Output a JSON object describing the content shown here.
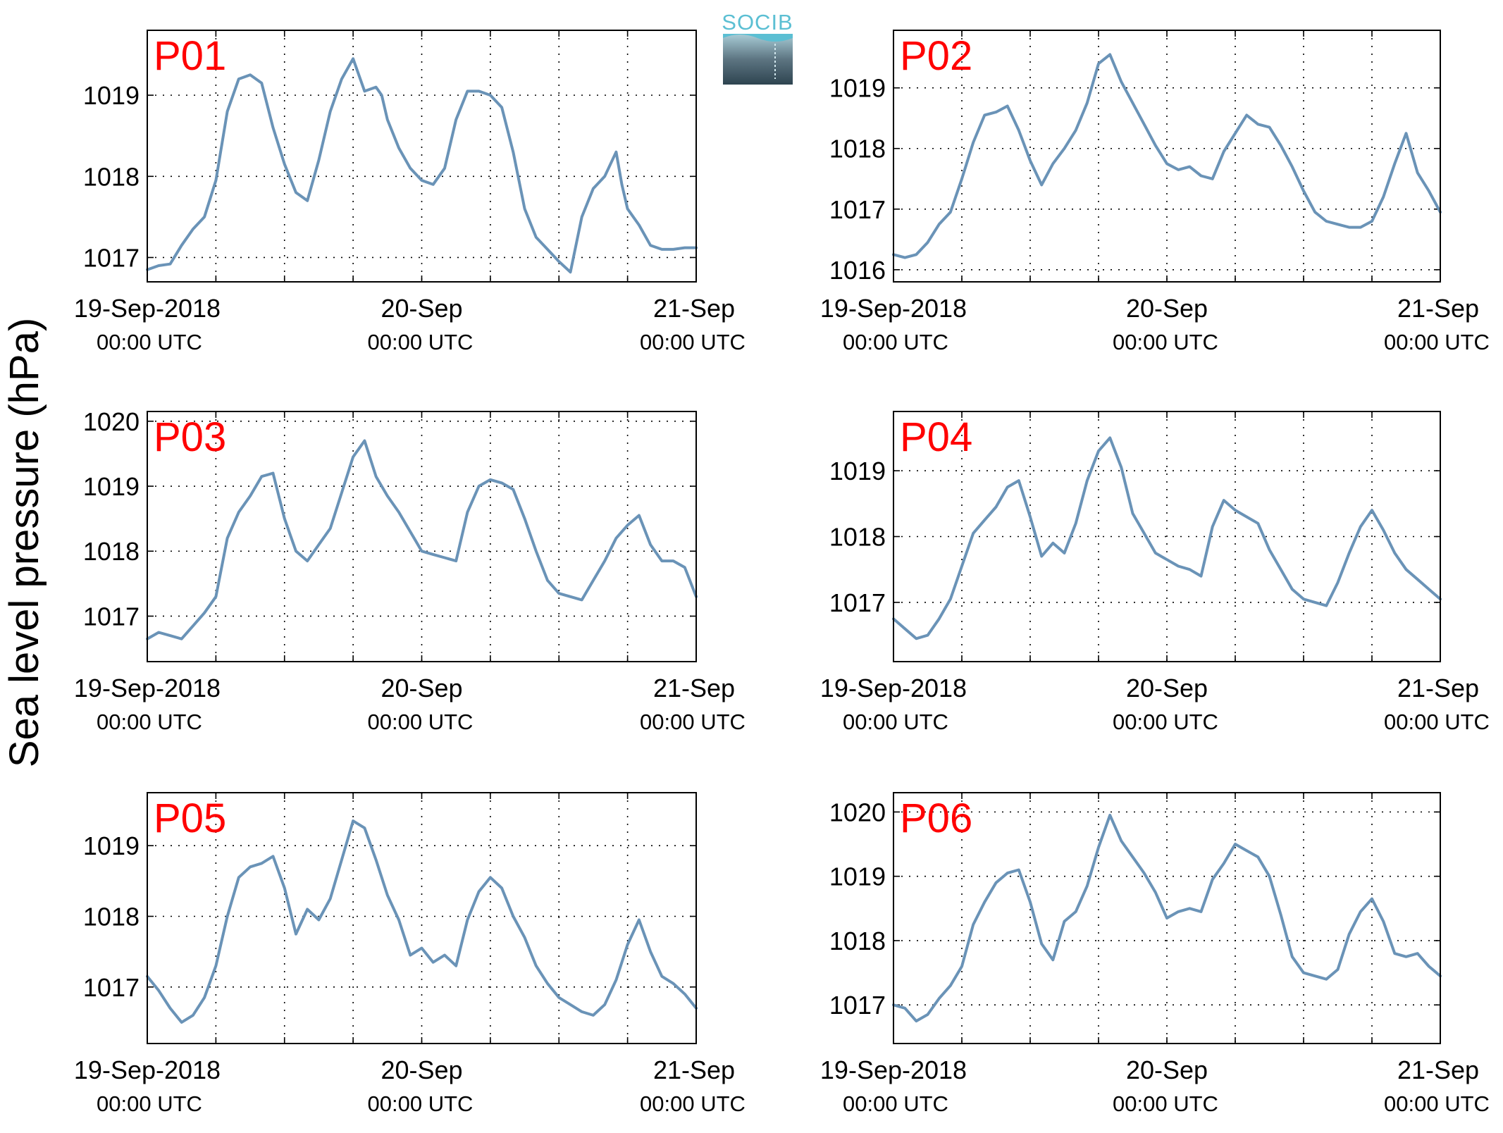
{
  "figure": {
    "ylabel": "Sea level pressure (hPa)",
    "logo_text": "SOCIB",
    "line_color": "#6a93b7",
    "tag_color": "#ff0000",
    "logo_color": "#5bbfd3"
  },
  "chart_data": [
    {
      "type": "line",
      "name": "P01",
      "x_tick_labels": [
        "19-Sep-2018",
        "20-Sep",
        "21-Sep"
      ],
      "x_tick_sublabels": [
        "00:00 UTC",
        "00:00 UTC",
        "00:00 UTC"
      ],
      "x_unit": "hours since 19-Sep-2018 00:00 UTC",
      "xlim": [
        0,
        48
      ],
      "ylim": [
        1016.7,
        1019.8
      ],
      "yticks": [
        1017,
        1018,
        1019
      ],
      "grid": true,
      "x": [
        0,
        1,
        2,
        3,
        4,
        5,
        6,
        7,
        8,
        9,
        10,
        11,
        12,
        13,
        14,
        15,
        16,
        17,
        18,
        19,
        20,
        20.5,
        21,
        22,
        23,
        24,
        25,
        26,
        27,
        28,
        29,
        30,
        31,
        32,
        33,
        34,
        35,
        36,
        37,
        38,
        39,
        40,
        41,
        41.5,
        42,
        43,
        44,
        45,
        46,
        47,
        48
      ],
      "y": [
        1016.85,
        1016.9,
        1016.92,
        1017.15,
        1017.35,
        1017.5,
        1017.95,
        1018.8,
        1019.2,
        1019.25,
        1019.15,
        1018.6,
        1018.15,
        1017.8,
        1017.7,
        1018.2,
        1018.8,
        1019.2,
        1019.45,
        1019.05,
        1019.1,
        1019.0,
        1018.7,
        1018.35,
        1018.1,
        1017.95,
        1017.9,
        1018.1,
        1018.7,
        1019.05,
        1019.05,
        1019.0,
        1018.85,
        1018.3,
        1017.6,
        1017.25,
        1017.1,
        1016.95,
        1016.82,
        1017.5,
        1017.85,
        1018.0,
        1018.3,
        1017.9,
        1017.6,
        1017.4,
        1017.15,
        1017.1,
        1017.1,
        1017.12,
        1017.12
      ]
    },
    {
      "type": "line",
      "name": "P02",
      "x_tick_labels": [
        "19-Sep-2018",
        "20-Sep",
        "21-Sep"
      ],
      "x_tick_sublabels": [
        "00:00 UTC",
        "00:00 UTC",
        "00:00 UTC"
      ],
      "x_unit": "hours since 19-Sep-2018 00:00 UTC",
      "xlim": [
        0,
        48
      ],
      "ylim": [
        1015.8,
        1019.95
      ],
      "yticks": [
        1016,
        1017,
        1018,
        1019
      ],
      "grid": true,
      "x": [
        0,
        1,
        2,
        3,
        4,
        5,
        6,
        7,
        8,
        9,
        10,
        11,
        12,
        13,
        14,
        15,
        16,
        17,
        18,
        19,
        20,
        21,
        22,
        23,
        24,
        25,
        26,
        27,
        28,
        29,
        30,
        31,
        32,
        33,
        34,
        35,
        36,
        37,
        38,
        39,
        40,
        41,
        42,
        43,
        44,
        45,
        46,
        47,
        48
      ],
      "y": [
        1016.25,
        1016.2,
        1016.25,
        1016.45,
        1016.75,
        1016.95,
        1017.5,
        1018.1,
        1018.55,
        1018.6,
        1018.7,
        1018.3,
        1017.8,
        1017.4,
        1017.75,
        1018.0,
        1018.3,
        1018.75,
        1019.4,
        1019.55,
        1019.1,
        1018.75,
        1018.4,
        1018.05,
        1017.75,
        1017.65,
        1017.7,
        1017.55,
        1017.5,
        1017.95,
        1018.25,
        1018.55,
        1018.4,
        1018.35,
        1018.05,
        1017.7,
        1017.3,
        1016.95,
        1016.8,
        1016.75,
        1016.7,
        1016.7,
        1016.8,
        1017.2,
        1017.75,
        1018.25,
        1017.6,
        1017.3,
        1016.95
      ]
    },
    {
      "type": "line",
      "name": "P03",
      "x_tick_labels": [
        "19-Sep-2018",
        "20-Sep",
        "21-Sep"
      ],
      "x_tick_sublabels": [
        "00:00 UTC",
        "00:00 UTC",
        "00:00 UTC"
      ],
      "x_unit": "hours since 19-Sep-2018 00:00 UTC",
      "xlim": [
        0,
        48
      ],
      "ylim": [
        1016.3,
        1020.15
      ],
      "yticks": [
        1017,
        1018,
        1019,
        1020
      ],
      "grid": true,
      "x": [
        0,
        1,
        2,
        3,
        4,
        5,
        6,
        7,
        8,
        9,
        10,
        11,
        12,
        13,
        14,
        15,
        16,
        17,
        18,
        19,
        20,
        21,
        22,
        23,
        24,
        25,
        26,
        27,
        28,
        29,
        30,
        31,
        32,
        33,
        34,
        35,
        36,
        37,
        38,
        39,
        40,
        41,
        42,
        43,
        44,
        45,
        46,
        47,
        48
      ],
      "y": [
        1016.65,
        1016.75,
        1016.7,
        1016.65,
        1016.85,
        1017.05,
        1017.3,
        1018.2,
        1018.6,
        1018.85,
        1019.15,
        1019.2,
        1018.5,
        1018.0,
        1017.85,
        1018.1,
        1018.35,
        1018.9,
        1019.45,
        1019.7,
        1019.15,
        1018.85,
        1018.6,
        1018.3,
        1018.0,
        1017.95,
        1017.9,
        1017.85,
        1018.6,
        1019.0,
        1019.1,
        1019.05,
        1018.95,
        1018.5,
        1018.0,
        1017.55,
        1017.35,
        1017.3,
        1017.25,
        1017.55,
        1017.85,
        1018.2,
        1018.4,
        1018.55,
        1018.1,
        1017.85,
        1017.85,
        1017.75,
        1017.3
      ]
    },
    {
      "type": "line",
      "name": "P04",
      "x_tick_labels": [
        "19-Sep-2018",
        "20-Sep",
        "21-Sep"
      ],
      "x_tick_sublabels": [
        "00:00 UTC",
        "00:00 UTC",
        "00:00 UTC"
      ],
      "x_unit": "hours since 19-Sep-2018 00:00 UTC",
      "xlim": [
        0,
        48
      ],
      "ylim": [
        1016.1,
        1019.9
      ],
      "yticks": [
        1017,
        1018,
        1019
      ],
      "grid": true,
      "x": [
        0,
        1,
        2,
        3,
        4,
        5,
        6,
        7,
        8,
        9,
        10,
        11,
        12,
        13,
        14,
        15,
        16,
        17,
        18,
        19,
        20,
        21,
        22,
        23,
        24,
        25,
        26,
        27,
        28,
        29,
        30,
        31,
        32,
        33,
        34,
        35,
        36,
        37,
        38,
        39,
        40,
        41,
        42,
        43,
        44,
        45,
        46,
        47,
        48
      ],
      "y": [
        1016.75,
        1016.6,
        1016.45,
        1016.5,
        1016.75,
        1017.05,
        1017.55,
        1018.05,
        1018.25,
        1018.45,
        1018.75,
        1018.85,
        1018.3,
        1017.7,
        1017.9,
        1017.75,
        1018.2,
        1018.85,
        1019.3,
        1019.5,
        1019.05,
        1018.35,
        1018.05,
        1017.75,
        1017.65,
        1017.55,
        1017.5,
        1017.4,
        1018.15,
        1018.55,
        1018.4,
        1018.3,
        1018.2,
        1017.8,
        1017.5,
        1017.2,
        1017.05,
        1017.0,
        1016.95,
        1017.3,
        1017.75,
        1018.15,
        1018.4,
        1018.1,
        1017.75,
        1017.5,
        1017.35,
        1017.2,
        1017.05
      ]
    },
    {
      "type": "line",
      "name": "P05",
      "x_tick_labels": [
        "19-Sep-2018",
        "20-Sep",
        "21-Sep"
      ],
      "x_tick_sublabels": [
        "00:00 UTC",
        "00:00 UTC",
        "00:00 UTC"
      ],
      "x_unit": "hours since 19-Sep-2018 00:00 UTC",
      "xlim": [
        0,
        48
      ],
      "ylim": [
        1016.2,
        1019.75
      ],
      "yticks": [
        1017,
        1018,
        1019
      ],
      "grid": true,
      "x": [
        0,
        1,
        2,
        3,
        4,
        5,
        6,
        7,
        8,
        9,
        10,
        11,
        12,
        13,
        14,
        15,
        16,
        17,
        18,
        19,
        20,
        21,
        22,
        23,
        24,
        25,
        26,
        27,
        28,
        29,
        30,
        31,
        32,
        33,
        34,
        35,
        36,
        37,
        38,
        39,
        40,
        41,
        42,
        43,
        44,
        45,
        46,
        47,
        48
      ],
      "y": [
        1017.15,
        1016.95,
        1016.7,
        1016.5,
        1016.6,
        1016.85,
        1017.3,
        1018.0,
        1018.55,
        1018.7,
        1018.75,
        1018.85,
        1018.4,
        1017.75,
        1018.1,
        1017.95,
        1018.25,
        1018.8,
        1019.35,
        1019.25,
        1018.8,
        1018.3,
        1017.95,
        1017.45,
        1017.55,
        1017.35,
        1017.45,
        1017.3,
        1017.95,
        1018.35,
        1018.55,
        1018.4,
        1018.0,
        1017.7,
        1017.3,
        1017.05,
        1016.85,
        1016.75,
        1016.65,
        1016.6,
        1016.75,
        1017.1,
        1017.6,
        1017.95,
        1017.5,
        1017.15,
        1017.05,
        1016.9,
        1016.7
      ]
    },
    {
      "type": "line",
      "name": "P06",
      "x_tick_labels": [
        "19-Sep-2018",
        "20-Sep",
        "21-Sep"
      ],
      "x_tick_sublabels": [
        "00:00 UTC",
        "00:00 UTC",
        "00:00 UTC"
      ],
      "x_unit": "hours since 19-Sep-2018 00:00 UTC",
      "xlim": [
        0,
        48
      ],
      "ylim": [
        1016.4,
        1020.3
      ],
      "yticks": [
        1017,
        1018,
        1019,
        1020
      ],
      "grid": true,
      "x": [
        0,
        1,
        2,
        3,
        4,
        5,
        6,
        7,
        8,
        9,
        10,
        11,
        12,
        13,
        14,
        15,
        16,
        17,
        18,
        19,
        20,
        21,
        22,
        23,
        24,
        25,
        26,
        27,
        28,
        29,
        30,
        31,
        32,
        33,
        34,
        35,
        36,
        37,
        38,
        39,
        40,
        41,
        42,
        43,
        44,
        45,
        46,
        47,
        48
      ],
      "y": [
        1017.0,
        1016.95,
        1016.75,
        1016.85,
        1017.1,
        1017.3,
        1017.6,
        1018.25,
        1018.6,
        1018.9,
        1019.05,
        1019.1,
        1018.6,
        1017.95,
        1017.7,
        1018.3,
        1018.45,
        1018.85,
        1019.45,
        1019.95,
        1019.55,
        1019.3,
        1019.05,
        1018.75,
        1018.35,
        1018.45,
        1018.5,
        1018.45,
        1018.95,
        1019.2,
        1019.5,
        1019.4,
        1019.3,
        1019.0,
        1018.4,
        1017.75,
        1017.5,
        1017.45,
        1017.4,
        1017.55,
        1018.1,
        1018.45,
        1018.65,
        1018.3,
        1017.8,
        1017.75,
        1017.8,
        1017.6,
        1017.45
      ]
    }
  ]
}
